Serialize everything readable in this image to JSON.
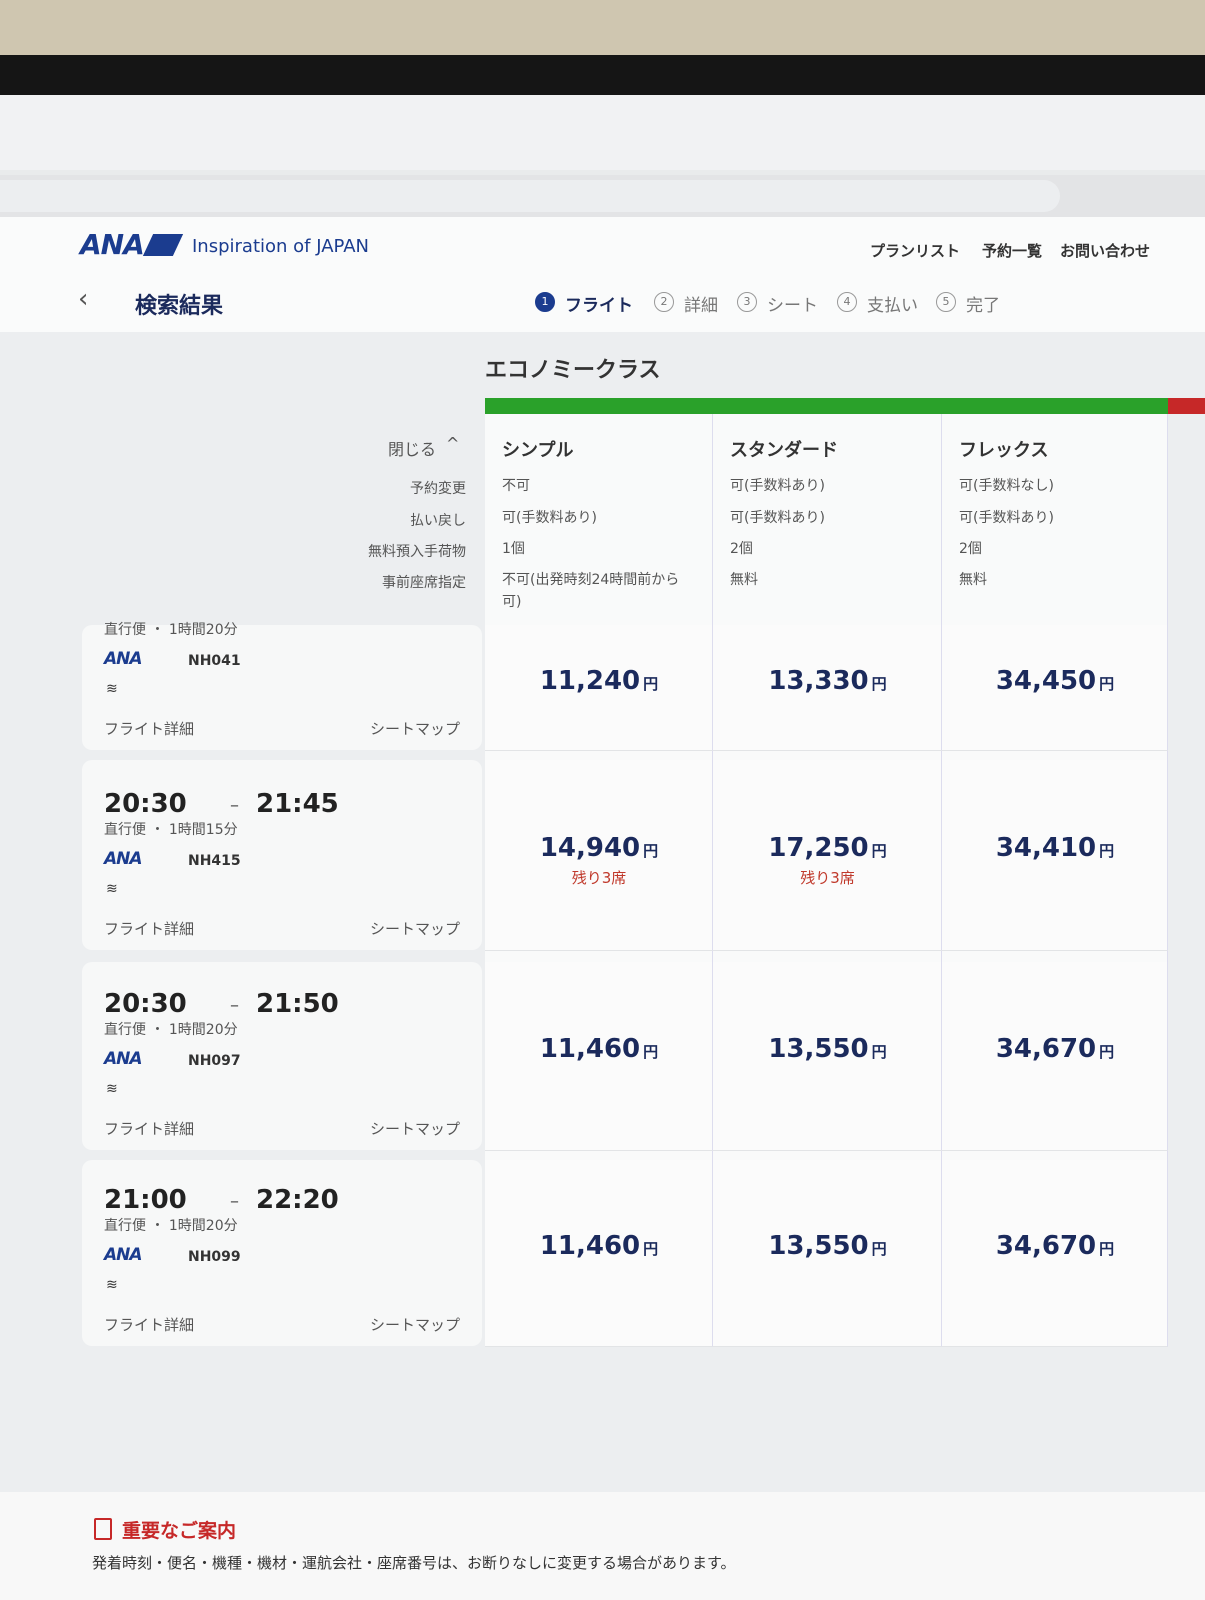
{
  "header": {
    "logo": "ANA",
    "tagline": "Inspiration of JAPAN",
    "nav": [
      "プランリスト",
      "予約一覧",
      "お問い合わせ"
    ]
  },
  "title": "検索結果",
  "steps": [
    {
      "num": "1",
      "label": "フライト"
    },
    {
      "num": "2",
      "label": "詳細"
    },
    {
      "num": "3",
      "label": "シート"
    },
    {
      "num": "4",
      "label": "支払い"
    },
    {
      "num": "5",
      "label": "完了"
    }
  ],
  "cabin": "エコノミークラス",
  "close": "閉じる",
  "fares": {
    "names": [
      "シンプル",
      "スタンダード",
      "フレックス"
    ],
    "features": [
      {
        "label": "予約変更",
        "values": [
          "不可",
          "可(手数料あり)",
          "可(手数料なし)"
        ]
      },
      {
        "label": "払い戻し",
        "values": [
          "可(手数料あり)",
          "可(手数料あり)",
          "可(手数料あり)"
        ]
      },
      {
        "label": "無料預入手荷物",
        "values": [
          "1個",
          "2個",
          "2個"
        ]
      },
      {
        "label": "事前座席指定",
        "values": [
          "不可(出発時刻24時間前から可)",
          "無料",
          "無料"
        ]
      }
    ]
  },
  "labels": {
    "details": "フライト詳細",
    "seatmap": "シートマップ",
    "currency": "円",
    "airline": "ANA"
  },
  "flights": [
    {
      "dep": null,
      "arr": null,
      "info": "直行便 ・ 1時間20分",
      "flight_no": "NH041",
      "prices": [
        "11,240",
        "13,330",
        "34,450"
      ],
      "remaining": [
        null,
        null,
        null
      ]
    },
    {
      "dep": "20:30",
      "arr": "21:45",
      "info": "直行便 ・ 1時間15分",
      "flight_no": "NH415",
      "prices": [
        "14,940",
        "17,250",
        "34,410"
      ],
      "remaining": [
        "残り3席",
        "残り3席",
        null
      ]
    },
    {
      "dep": "20:30",
      "arr": "21:50",
      "info": "直行便 ・ 1時間20分",
      "flight_no": "NH097",
      "prices": [
        "11,460",
        "13,550",
        "34,670"
      ],
      "remaining": [
        null,
        null,
        null
      ]
    },
    {
      "dep": "21:00",
      "arr": "22:20",
      "info": "直行便 ・ 1時間20分",
      "flight_no": "NH099",
      "prices": [
        "11,460",
        "13,550",
        "34,670"
      ],
      "remaining": [
        null,
        null,
        null
      ]
    }
  ],
  "notice": {
    "title": "重要なご案内",
    "text": "発着時刻・便名・機種・機材・運航会社・座席番号は、お断りなしに変更する場合があります。"
  }
}
